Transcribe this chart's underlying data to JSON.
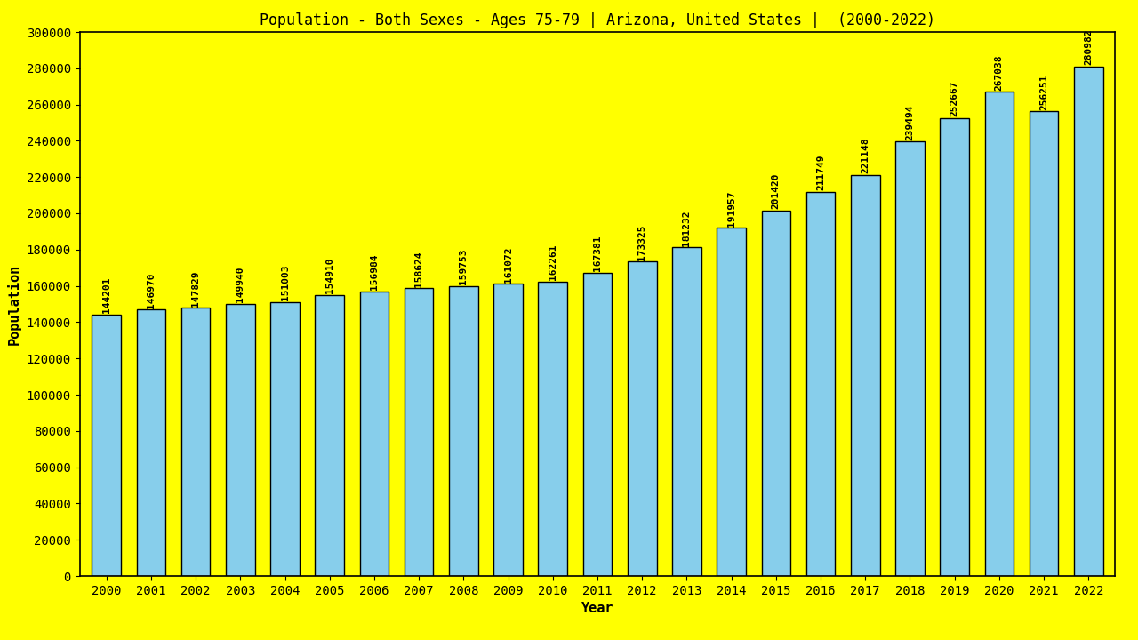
{
  "title": "Population - Both Sexes - Ages 75-79 | Arizona, United States |  (2000-2022)",
  "xlabel": "Year",
  "ylabel": "Population",
  "background_color": "#FFFF00",
  "bar_color": "#87CEEB",
  "bar_edge_color": "#000000",
  "years": [
    2000,
    2001,
    2002,
    2003,
    2004,
    2005,
    2006,
    2007,
    2008,
    2009,
    2010,
    2011,
    2012,
    2013,
    2014,
    2015,
    2016,
    2017,
    2018,
    2019,
    2020,
    2021,
    2022
  ],
  "values": [
    144201,
    146970,
    147829,
    149940,
    151003,
    154910,
    156984,
    158624,
    159753,
    161072,
    162261,
    167381,
    173325,
    181232,
    191957,
    201420,
    211749,
    221148,
    239494,
    252667,
    267038,
    256251,
    280982
  ],
  "ylim": [
    0,
    300000
  ],
  "yticks": [
    0,
    20000,
    40000,
    60000,
    80000,
    100000,
    120000,
    140000,
    160000,
    180000,
    200000,
    220000,
    240000,
    260000,
    280000,
    300000
  ],
  "title_fontsize": 12,
  "axis_label_fontsize": 11,
  "tick_fontsize": 10,
  "annotation_fontsize": 8,
  "bar_width": 0.65
}
